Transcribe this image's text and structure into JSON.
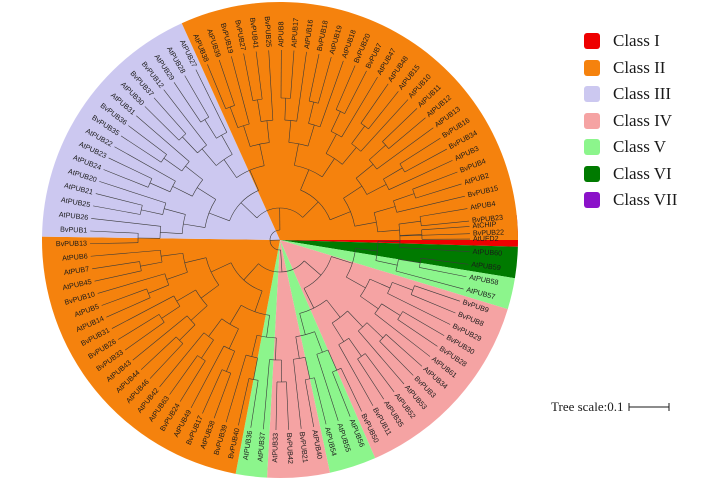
{
  "legend": {
    "items": [
      {
        "label": "Class I",
        "color": "#ee0000"
      },
      {
        "label": "Class II",
        "color": "#f5820d"
      },
      {
        "label": "Class III",
        "color": "#ccc8f0"
      },
      {
        "label": "Class IV",
        "color": "#f5a3a3"
      },
      {
        "label": "Class V",
        "color": "#8cf58c"
      },
      {
        "label": "Class VI",
        "color": "#007a00"
      },
      {
        "label": "Class VII",
        "color": "#8b12c9"
      }
    ]
  },
  "scale": {
    "label": "Tree scale:0.1"
  },
  "tree": {
    "leaves": [
      {
        "label": "AtCHIP",
        "cls": 6
      },
      {
        "label": "AtUFD2",
        "cls": 0
      },
      {
        "label": "AtPUB60",
        "cls": 5
      },
      {
        "label": "AtPUB59",
        "cls": 5
      },
      {
        "label": "AtPUB58",
        "cls": 4
      },
      {
        "label": "AtPUB57",
        "cls": 4
      },
      {
        "label": "BvPUB9",
        "cls": 3
      },
      {
        "label": "BvPUB8",
        "cls": 3
      },
      {
        "label": "BvPUB29",
        "cls": 3
      },
      {
        "label": "BvPUB30",
        "cls": 3
      },
      {
        "label": "BvPUB28",
        "cls": 3
      },
      {
        "label": "AtPUB61",
        "cls": 3
      },
      {
        "label": "AtPUB34",
        "cls": 3
      },
      {
        "label": "BvPUB3",
        "cls": 3
      },
      {
        "label": "AtPUB53",
        "cls": 3
      },
      {
        "label": "AtPUB52",
        "cls": 3
      },
      {
        "label": "AtPUB35",
        "cls": 3
      },
      {
        "label": "BvPUB11",
        "cls": 3
      },
      {
        "label": "BvPUB50",
        "cls": 3
      },
      {
        "label": "AtPUB56",
        "cls": 4
      },
      {
        "label": "AtPUB55",
        "cls": 4
      },
      {
        "label": "AtPUB54",
        "cls": 4
      },
      {
        "label": "AtPUB40",
        "cls": 3
      },
      {
        "label": "BvPUB21",
        "cls": 3
      },
      {
        "label": "BvPUB42",
        "cls": 3
      },
      {
        "label": "AtPUB33",
        "cls": 3
      },
      {
        "label": "AtPUB37",
        "cls": 4
      },
      {
        "label": "AtPUB36",
        "cls": 4
      },
      {
        "label": "BvPUB40",
        "cls": 1
      },
      {
        "label": "BvPUB39",
        "cls": 1
      },
      {
        "label": "AtPUB38",
        "cls": 1
      },
      {
        "label": "BvPUB17",
        "cls": 1
      },
      {
        "label": "AtPUB49",
        "cls": 1
      },
      {
        "label": "BvPUB24",
        "cls": 1
      },
      {
        "label": "AtPUB63",
        "cls": 1
      },
      {
        "label": "AtPUB42",
        "cls": 1
      },
      {
        "label": "AtPUB46",
        "cls": 1
      },
      {
        "label": "AtPUB44",
        "cls": 1
      },
      {
        "label": "AtPUB43",
        "cls": 1
      },
      {
        "label": "BvPUB33",
        "cls": 1
      },
      {
        "label": "BvPUB26",
        "cls": 1
      },
      {
        "label": "BvPUB31",
        "cls": 1
      },
      {
        "label": "AtPUB14",
        "cls": 1
      },
      {
        "label": "AtPUB5",
        "cls": 1
      },
      {
        "label": "BvPUB10",
        "cls": 1
      },
      {
        "label": "AtPUB45",
        "cls": 1
      },
      {
        "label": "AtPUB7",
        "cls": 1
      },
      {
        "label": "AtPUB6",
        "cls": 1
      },
      {
        "label": "BvPUB13",
        "cls": 1
      },
      {
        "label": "BvPUB1",
        "cls": 2
      },
      {
        "label": "AtPUB26",
        "cls": 2
      },
      {
        "label": "AtPUB25",
        "cls": 2
      },
      {
        "label": "AtPUB21",
        "cls": 2
      },
      {
        "label": "AtPUB20",
        "cls": 2
      },
      {
        "label": "AtPUB24",
        "cls": 2
      },
      {
        "label": "AtPUB23",
        "cls": 2
      },
      {
        "label": "AtPUB22",
        "cls": 2
      },
      {
        "label": "BvPUB35",
        "cls": 2
      },
      {
        "label": "BvPUB36",
        "cls": 2
      },
      {
        "label": "AtPUB31",
        "cls": 2
      },
      {
        "label": "AtPUB30",
        "cls": 2
      },
      {
        "label": "BvPUB37",
        "cls": 2
      },
      {
        "label": "BvPUB12",
        "cls": 2
      },
      {
        "label": "AtPUB29",
        "cls": 2
      },
      {
        "label": "AtPUB28",
        "cls": 2
      },
      {
        "label": "AtPUB27",
        "cls": 2
      },
      {
        "label": "AtPUB38",
        "cls": 1
      },
      {
        "label": "AtPUB39",
        "cls": 1
      },
      {
        "label": "BvPUB19",
        "cls": 1
      },
      {
        "label": "BvPUB27",
        "cls": 1
      },
      {
        "label": "BvPUB41",
        "cls": 1
      },
      {
        "label": "BvPUB25",
        "cls": 1
      },
      {
        "label": "AtPUB8",
        "cls": 1
      },
      {
        "label": "AtPUB17",
        "cls": 1
      },
      {
        "label": "AtPUB16",
        "cls": 1
      },
      {
        "label": "BvPUB18",
        "cls": 1
      },
      {
        "label": "AtPUB19",
        "cls": 1
      },
      {
        "label": "AtPUB18",
        "cls": 1
      },
      {
        "label": "BvPUB20",
        "cls": 1
      },
      {
        "label": "BvPUB7",
        "cls": 1
      },
      {
        "label": "AtPUB47",
        "cls": 1
      },
      {
        "label": "AtPUB48",
        "cls": 1
      },
      {
        "label": "AtPUB15",
        "cls": 1
      },
      {
        "label": "AtPUB10",
        "cls": 1
      },
      {
        "label": "AtPUB11",
        "cls": 1
      },
      {
        "label": "AtPUB12",
        "cls": 1
      },
      {
        "label": "AtPUB13",
        "cls": 1
      },
      {
        "label": "BvPUB16",
        "cls": 1
      },
      {
        "label": "BvPUB34",
        "cls": 1
      },
      {
        "label": "AtPUB3",
        "cls": 1
      },
      {
        "label": "BvPUB4",
        "cls": 1
      },
      {
        "label": "AtPUB2",
        "cls": 1
      },
      {
        "label": "BvPUB15",
        "cls": 1
      },
      {
        "label": "AtPUB4",
        "cls": 1
      },
      {
        "label": "BvPUB23",
        "cls": 1
      },
      {
        "label": "BvPUB22",
        "cls": 1
      }
    ]
  }
}
